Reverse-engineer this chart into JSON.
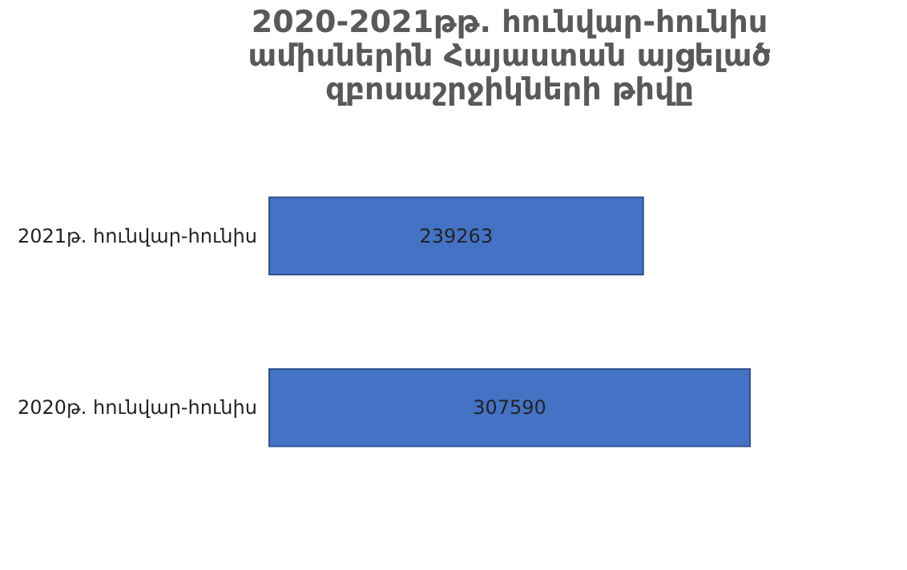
{
  "chart_data": {
    "type": "bar",
    "orientation": "horizontal",
    "title": "2020-2021թթ. հունվար-հունիս ամիսներին Հայաստան այցելած զբոսաշրջիկների թիվը",
    "categories": [
      "2021թ. հունվար-հունիս",
      "2020թ. հունվար-հունիս"
    ],
    "values": [
      239263,
      307590
    ],
    "color": "#4472c4",
    "data_labels": true
  }
}
